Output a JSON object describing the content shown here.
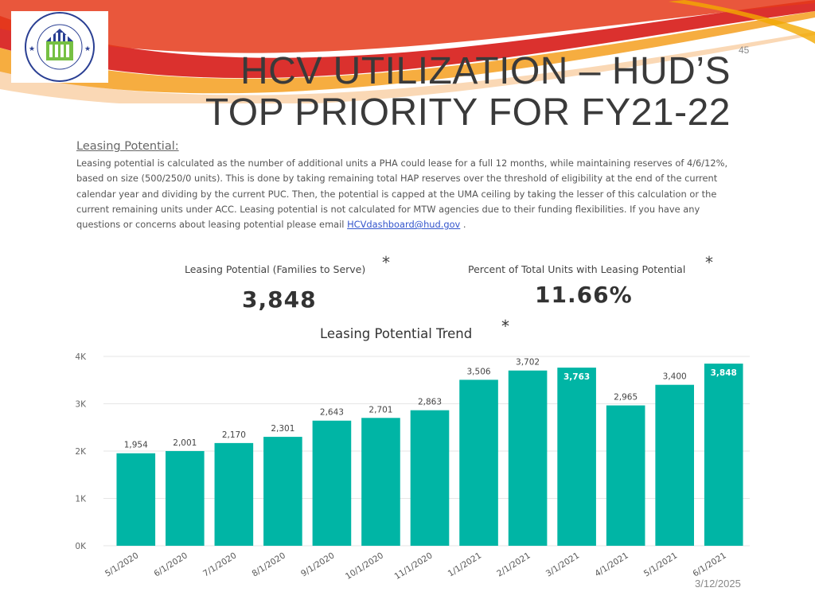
{
  "slide_number": "45",
  "title_line1": "HCV UTILIZATION – HUD’S",
  "title_line2": "TOP PRIORITY FOR FY21-22",
  "logo_text": "U.S. DEPARTMENT OF HOUSING AND URBAN DEVELOPMENT",
  "info": {
    "heading": "Leasing Potential:",
    "body": "Leasing potential is calculated as the number of additional units a PHA could lease for a full 12 months, while maintaining reserves of 4/6/12%, based on size (500/250/0 units). This is done by taking remaining total HAP reserves over the threshold of eligibility at the end of the current calendar year and dividing by the current PUC. Then, the potential is capped at the UMA ceiling by taking the lesser of this calculation or the current remaining units under ACC. Leasing potential is not calculated for MTW agencies due to their funding flexibilities. If you have any questions or concerns about leasing potential please email",
    "email": "HCVdashboard@hud.gov",
    "trailing": " ."
  },
  "kpis": {
    "families_label": "Leasing Potential (Families to Serve)",
    "families_value": "3,848",
    "percent_label": "Percent of Total Units with Leasing Potential",
    "percent_value": "11.66%",
    "asterisk": "*"
  },
  "footer_date": "3/12/2025",
  "colors": {
    "bar": "#00b5a5",
    "swoosh_red": "#d8201c",
    "swoosh_orange": "#f39200",
    "logo_blue": "#2a3f93",
    "logo_green": "#76c043"
  },
  "chart_data": {
    "type": "bar",
    "title": "Leasing Potential Trend",
    "title_marker": "*",
    "categories": [
      "5/1/2020",
      "6/1/2020",
      "7/1/2020",
      "8/1/2020",
      "9/1/2020",
      "10/1/2020",
      "11/1/2020",
      "1/1/2021",
      "2/1/2021",
      "3/1/2021",
      "4/1/2021",
      "5/1/2021",
      "6/1/2021"
    ],
    "values": [
      1954,
      2001,
      2170,
      2301,
      2643,
      2701,
      2863,
      3506,
      3702,
      3763,
      2965,
      3400,
      3848
    ],
    "data_labels": [
      "1,954",
      "2,001",
      "2,170",
      "2,301",
      "2,643",
      "2,701",
      "2,863",
      "3,506",
      "3,702",
      "3,763",
      "2,965",
      "3,400",
      "3,848"
    ],
    "labels_inside": [
      false,
      false,
      false,
      false,
      false,
      false,
      false,
      false,
      false,
      true,
      false,
      false,
      true
    ],
    "ylim": [
      0,
      4000
    ],
    "yticks": [
      0,
      1000,
      2000,
      3000,
      4000
    ],
    "ytick_labels": [
      "0K",
      "1K",
      "2K",
      "3K",
      "4K"
    ],
    "grid": true,
    "xlabel": "",
    "ylabel": ""
  }
}
